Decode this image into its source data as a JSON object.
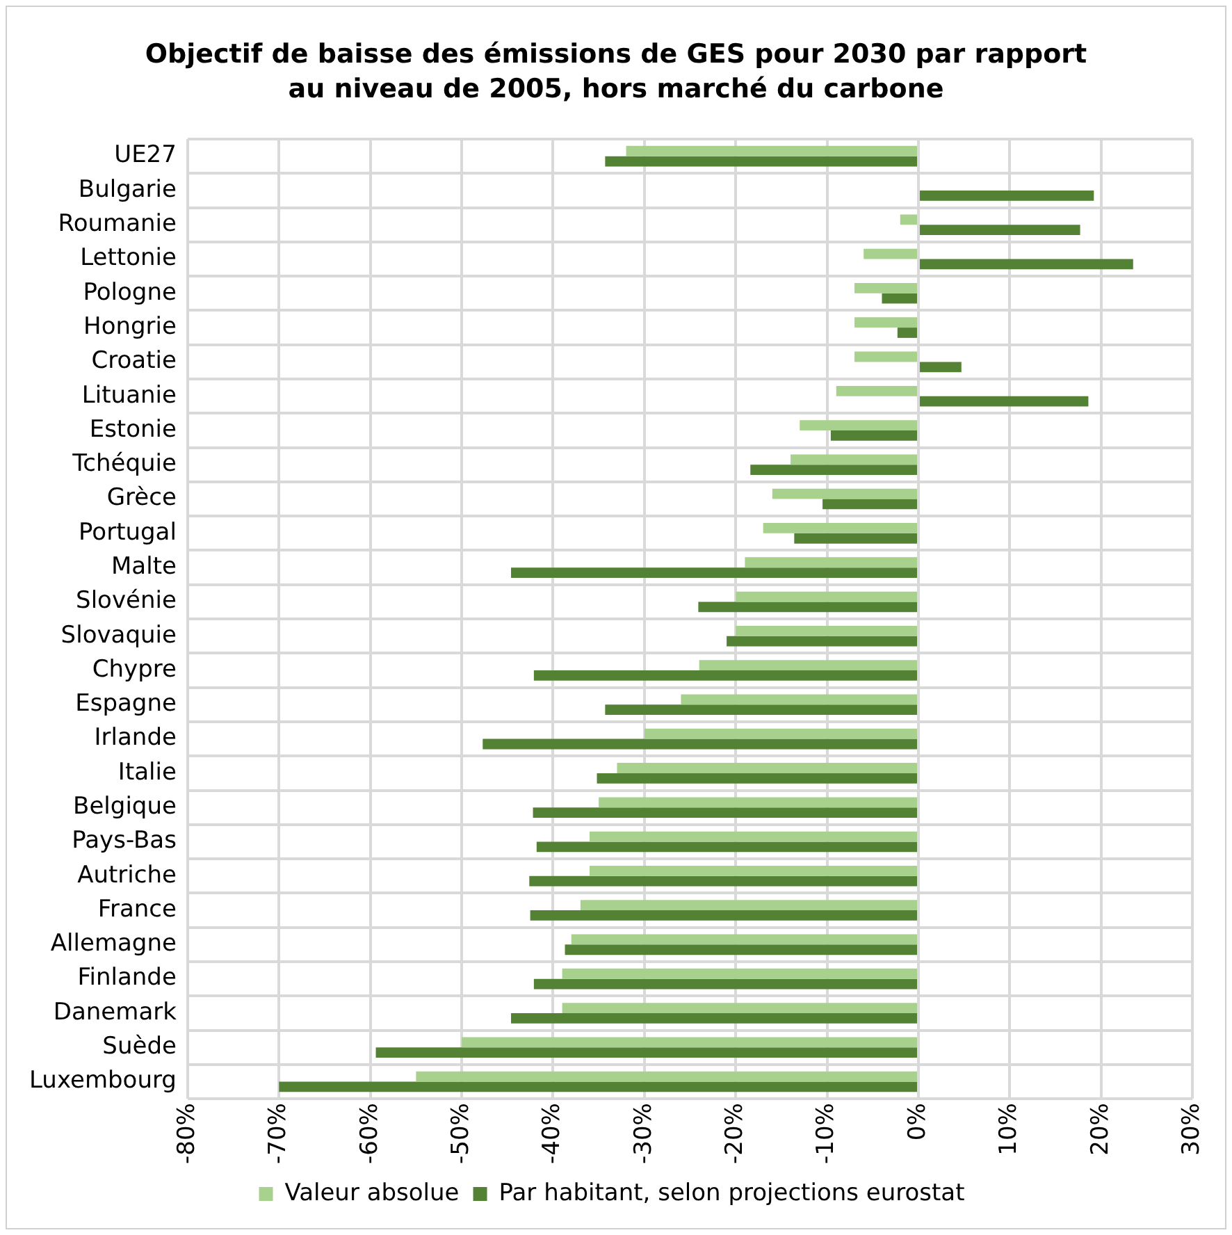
{
  "chart_data": {
    "type": "bar",
    "orientation": "horizontal",
    "title": "Objectif de baisse des émissions de GES pour 2030 par rapport au niveau de 2005, hors marché du carbone",
    "categories": [
      "UE27",
      "Bulgarie",
      "Roumanie",
      "Lettonie",
      "Pologne",
      "Hongrie",
      "Croatie",
      "Lituanie",
      "Estonie",
      "Tchéquie",
      "Grèce",
      "Portugal",
      "Malte",
      "Slovénie",
      "Slovaquie",
      "Chypre",
      "Espagne",
      "Irlande",
      "Italie",
      "Belgique",
      "Pays-Bas",
      "Autriche",
      "France",
      "Allemagne",
      "Finlande",
      "Danemark",
      "Suède",
      "Luxembourg"
    ],
    "series": [
      {
        "name": "Valeur absolue",
        "color": "#a9d18e",
        "values": [
          -32,
          null,
          -2,
          -6,
          -7,
          -7,
          -7,
          -9,
          -13,
          -14,
          -16,
          -17,
          -19,
          -20,
          -20,
          -24,
          -26,
          -30,
          -33,
          -35,
          -36,
          -36,
          -37,
          -38,
          -39,
          -39,
          -50,
          -55
        ]
      },
      {
        "name": "Par habitant, selon projections eurostat",
        "color": "#548235",
        "values": [
          -34.3,
          19.2,
          17.7,
          23.5,
          -4,
          -2.3,
          4.7,
          18.6,
          -9.6,
          -18.4,
          -10.5,
          -13.6,
          -44.6,
          -24.1,
          -21,
          -42.1,
          -34.3,
          -47.7,
          -35.2,
          -42.2,
          -41.8,
          -42.6,
          -42.5,
          -38.7,
          -42.1,
          -44.6,
          -59.4,
          -70
        ]
      }
    ],
    "xlim": [
      -80,
      30
    ],
    "xticks": [
      {
        "value": -80,
        "label": "-80%"
      },
      {
        "value": -70,
        "label": "-70%"
      },
      {
        "value": -60,
        "label": "-60%"
      },
      {
        "value": -50,
        "label": "-50%"
      },
      {
        "value": -40,
        "label": "-40%"
      },
      {
        "value": -30,
        "label": "-30%"
      },
      {
        "value": -20,
        "label": "-20%"
      },
      {
        "value": -10,
        "label": "-10%"
      },
      {
        "value": 0,
        "label": "0%"
      },
      {
        "value": 10,
        "label": "10%"
      },
      {
        "value": 20,
        "label": "20%"
      },
      {
        "value": 30,
        "label": "30%"
      }
    ],
    "grid": true,
    "legend": "bottom"
  }
}
